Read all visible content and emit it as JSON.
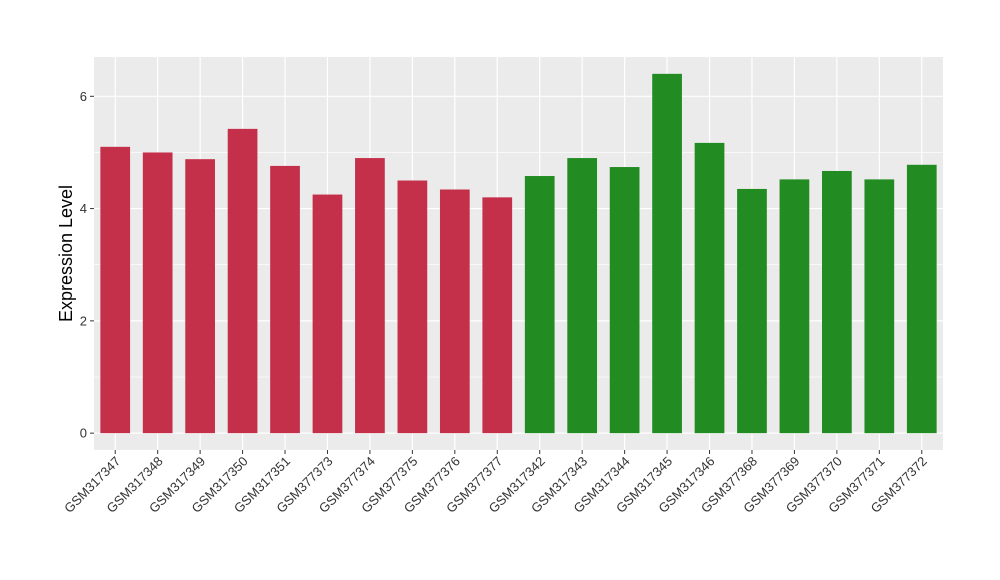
{
  "chart_data": {
    "type": "bar",
    "title": "",
    "xlabel": "",
    "ylabel": "Expression Level",
    "ylim": [
      -0.3,
      6.7
    ],
    "yticks": [
      0,
      2,
      4,
      6
    ],
    "grid": true,
    "background": "#EBEBEB",
    "gridline_color": "#FFFFFF",
    "categories": [
      "GSM317347",
      "GSM317348",
      "GSM317349",
      "GSM317350",
      "GSM317351",
      "GSM377373",
      "GSM377374",
      "GSM377375",
      "GSM377376",
      "GSM377377",
      "GSM317342",
      "GSM317343",
      "GSM317344",
      "GSM317345",
      "GSM317346",
      "GSM377368",
      "GSM377369",
      "GSM377370",
      "GSM377371",
      "GSM377372"
    ],
    "values": [
      5.1,
      5.0,
      4.88,
      5.42,
      4.76,
      4.25,
      4.9,
      4.5,
      4.34,
      4.2,
      4.58,
      4.9,
      4.74,
      6.4,
      5.17,
      4.35,
      4.52,
      4.67,
      4.52,
      4.78
    ],
    "colors": [
      "#C4304A",
      "#C4304A",
      "#C4304A",
      "#C4304A",
      "#C4304A",
      "#C4304A",
      "#C4304A",
      "#C4304A",
      "#C4304A",
      "#C4304A",
      "#228B22",
      "#228B22",
      "#228B22",
      "#228B22",
      "#228B22",
      "#228B22",
      "#228B22",
      "#228B22",
      "#228B22",
      "#228B22"
    ]
  }
}
